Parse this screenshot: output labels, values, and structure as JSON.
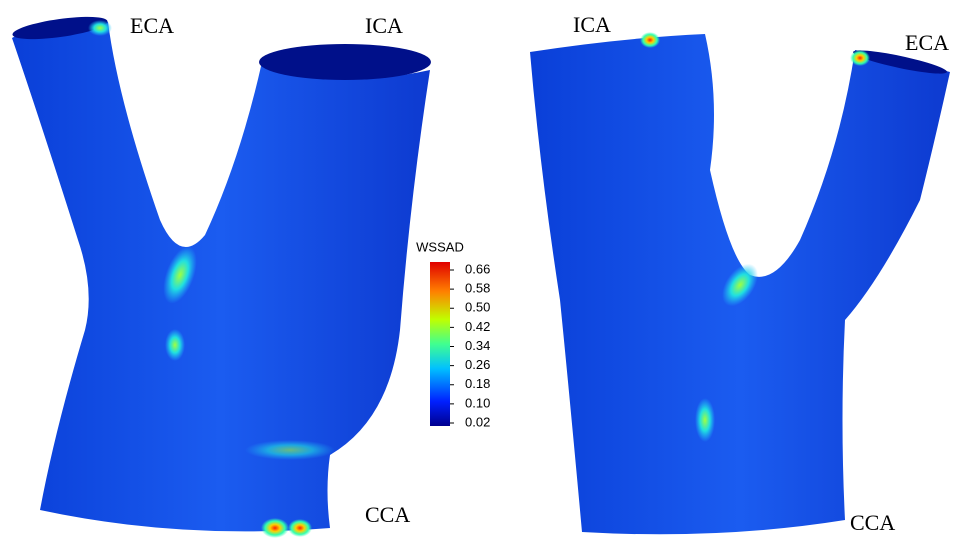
{
  "left_view": {
    "labels": {
      "eca": "ECA",
      "ica": "ICA",
      "cca": "CCA"
    }
  },
  "right_view": {
    "labels": {
      "ica": "ICA",
      "eca": "ECA",
      "cca": "CCA"
    }
  },
  "colorbar": {
    "title": "WSSAD",
    "lim": [
      0.02,
      0.66
    ],
    "ticks": [
      0.66,
      0.58,
      {
        "value": 0.5,
        "label": "0.50"
      },
      0.42,
      0.34,
      0.26,
      0.18,
      {
        "value": 0.1,
        "label": "0.10"
      },
      0.02
    ]
  }
}
